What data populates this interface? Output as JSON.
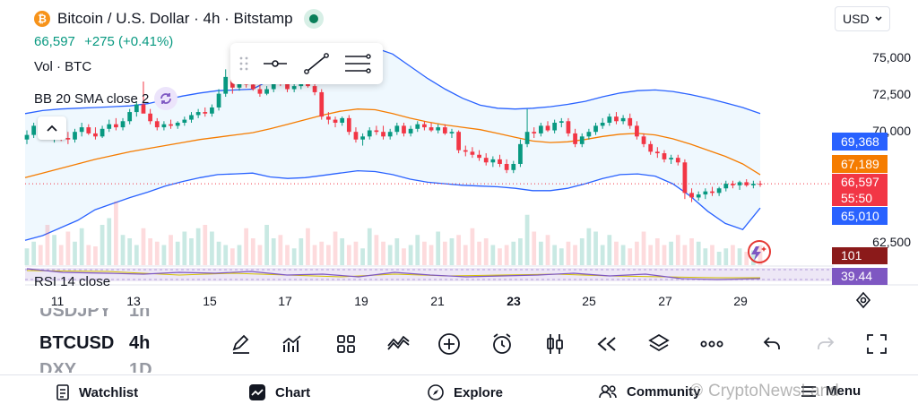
{
  "header": {
    "symbol_title": "Bitcoin / U.S. Dollar · 4h · Bitstamp",
    "logo_letter": "₿",
    "last_price": "66,597",
    "change": "+275 (+0.41%)",
    "volume_label": "Vol · BTC",
    "bb_label": "BB 20 SMA close 2",
    "rsi_label": "RSI 14 close"
  },
  "currency_select": {
    "value": "USD"
  },
  "price_axis": {
    "ticks": [
      "75,000",
      "72,500",
      "70,000",
      "62,500"
    ]
  },
  "price_tags": {
    "bb_upper": {
      "text": "69,368",
      "color": "#2962ff"
    },
    "bb_basis": {
      "text": "67,189",
      "color": "#f57c00"
    },
    "last": {
      "text": "66,597",
      "countdown": "55:50",
      "color": "#f23645"
    },
    "bb_lower": {
      "text": "65,010",
      "color": "#2962ff"
    },
    "volume": {
      "text": "101",
      "color": "#8b1a1a"
    },
    "rsi": {
      "text": "39.44",
      "color": "#7e57c2"
    }
  },
  "time_axis": [
    "11",
    "13",
    "15",
    "17",
    "19",
    "21",
    "23",
    "25",
    "27",
    "29"
  ],
  "symbols_list": [
    {
      "symbol": "USDJPY",
      "tf": "1h"
    },
    {
      "symbol": "BTCUSD",
      "tf": "4h"
    },
    {
      "symbol": "DXY",
      "tf": "1D"
    }
  ],
  "toolbar_icons": [
    "pencil-icon",
    "indicators-icon",
    "layouts-icon",
    "compare-icon",
    "add-icon",
    "alert-icon",
    "chart-type-icon",
    "replay-icon",
    "layers-icon",
    "more-icon",
    "undo-icon",
    "redo-icon",
    "fullscreen-icon"
  ],
  "nav": {
    "watchlist": "Watchlist",
    "chart": "Chart",
    "explore": "Explore",
    "community": "Community",
    "menu": "Menu"
  },
  "watermark": "CryptoNewsLand",
  "chart_data": {
    "type": "candlestick",
    "title": "Bitcoin / U.S. Dollar · 4h · Bitstamp",
    "y_axis_range": [
      61500,
      76000
    ],
    "x_labels": [
      "11",
      "13",
      "15",
      "17",
      "19",
      "21",
      "23",
      "25",
      "27",
      "29"
    ],
    "candles_ohlc": [
      [
        69500,
        70100,
        69200,
        69800
      ],
      [
        69800,
        70600,
        69600,
        70400
      ],
      [
        70400,
        70900,
        69900,
        70200
      ],
      [
        70200,
        70500,
        69500,
        69700
      ],
      [
        69700,
        70100,
        69300,
        69900
      ],
      [
        69900,
        70400,
        69400,
        69600
      ],
      [
        69600,
        70000,
        69200,
        69500
      ],
      [
        69500,
        70200,
        69300,
        70000
      ],
      [
        70000,
        70600,
        69700,
        70300
      ],
      [
        70300,
        70500,
        69800,
        69900
      ],
      [
        69900,
        70300,
        69500,
        69700
      ],
      [
        69700,
        70400,
        69600,
        70200
      ],
      [
        70200,
        70800,
        70000,
        70500
      ],
      [
        70500,
        70900,
        70100,
        70300
      ],
      [
        70300,
        70900,
        70100,
        70700
      ],
      [
        70700,
        71500,
        70500,
        71300
      ],
      [
        71300,
        72000,
        71000,
        71800
      ],
      [
        71800,
        73300,
        71300,
        71200
      ],
      [
        71200,
        71500,
        70500,
        70700
      ],
      [
        70700,
        70900,
        70100,
        70300
      ],
      [
        70300,
        70700,
        70100,
        70500
      ],
      [
        70500,
        70800,
        70200,
        70400
      ],
      [
        70400,
        70700,
        70200,
        70600
      ],
      [
        70600,
        71000,
        70400,
        70800
      ],
      [
        70800,
        71300,
        70600,
        71100
      ],
      [
        71100,
        71500,
        70900,
        71300
      ],
      [
        71300,
        71600,
        71000,
        71200
      ],
      [
        71200,
        71800,
        71000,
        71600
      ],
      [
        71600,
        72800,
        71400,
        72500
      ],
      [
        72500,
        74100,
        72300,
        73600
      ],
      [
        73600,
        73900,
        72500,
        72900
      ],
      [
        72900,
        73500,
        72700,
        73300
      ],
      [
        73300,
        73600,
        72900,
        73100
      ],
      [
        73100,
        73400,
        72700,
        72800
      ],
      [
        72800,
        73100,
        72300,
        72500
      ],
      [
        72500,
        73000,
        72400,
        72800
      ],
      [
        72800,
        73600,
        72600,
        73400
      ],
      [
        73400,
        73700,
        73000,
        73300
      ],
      [
        73300,
        73500,
        72600,
        72800
      ],
      [
        72800,
        73200,
        72600,
        73000
      ],
      [
        73000,
        73400,
        72800,
        73200
      ],
      [
        73200,
        73500,
        72900,
        73000
      ],
      [
        73000,
        73200,
        72400,
        72600
      ],
      [
        72600,
        72800,
        70800,
        71000
      ],
      [
        71000,
        71300,
        70500,
        70800
      ],
      [
        70800,
        71000,
        70300,
        70600
      ],
      [
        70600,
        71000,
        70400,
        70900
      ],
      [
        70900,
        71100,
        69800,
        70000
      ],
      [
        70000,
        70300,
        69300,
        69500
      ],
      [
        69500,
        69900,
        69100,
        69700
      ],
      [
        69700,
        70300,
        69500,
        70100
      ],
      [
        70100,
        70400,
        69800,
        70000
      ],
      [
        70000,
        70400,
        69500,
        69700
      ],
      [
        69700,
        70200,
        69500,
        70000
      ],
      [
        70000,
        70600,
        69800,
        70400
      ],
      [
        70400,
        70600,
        69700,
        69900
      ],
      [
        69900,
        70400,
        69700,
        70200
      ],
      [
        70200,
        70700,
        70000,
        70500
      ],
      [
        70500,
        70700,
        70100,
        70300
      ],
      [
        70300,
        70600,
        70000,
        70100
      ],
      [
        70100,
        70500,
        69900,
        70300
      ],
      [
        70300,
        70500,
        69800,
        69900
      ],
      [
        69900,
        70200,
        69600,
        70000
      ],
      [
        70000,
        70100,
        68600,
        68800
      ],
      [
        68800,
        69100,
        68400,
        68700
      ],
      [
        68700,
        69000,
        68300,
        68500
      ],
      [
        68500,
        68800,
        68100,
        68300
      ],
      [
        68300,
        68600,
        67800,
        68000
      ],
      [
        68000,
        68400,
        67700,
        68200
      ],
      [
        68200,
        68500,
        67700,
        67900
      ],
      [
        67900,
        68200,
        67300,
        67500
      ],
      [
        67500,
        68100,
        67300,
        67900
      ],
      [
        67900,
        69500,
        67700,
        69200
      ],
      [
        69200,
        71500,
        69000,
        70000
      ],
      [
        70000,
        70300,
        69600,
        69900
      ],
      [
        69900,
        70600,
        69700,
        70400
      ],
      [
        70400,
        70700,
        70000,
        70100
      ],
      [
        70100,
        70800,
        69900,
        70600
      ],
      [
        70600,
        70900,
        70300,
        70700
      ],
      [
        70700,
        70900,
        69700,
        69900
      ],
      [
        69900,
        70200,
        69000,
        69200
      ],
      [
        69200,
        69900,
        69000,
        69700
      ],
      [
        69700,
        70200,
        69500,
        70000
      ],
      [
        70000,
        70600,
        69800,
        70400
      ],
      [
        70400,
        70900,
        70200,
        70600
      ],
      [
        70600,
        71200,
        70400,
        71000
      ],
      [
        71000,
        71300,
        70500,
        70700
      ],
      [
        70700,
        71100,
        70500,
        70900
      ],
      [
        70900,
        71200,
        70200,
        70400
      ],
      [
        70400,
        70700,
        69500,
        69700
      ],
      [
        69700,
        69900,
        69000,
        69200
      ],
      [
        69200,
        69400,
        68500,
        68700
      ],
      [
        68700,
        69000,
        68300,
        68600
      ],
      [
        68600,
        68800,
        68000,
        68200
      ],
      [
        68200,
        68500,
        67900,
        68300
      ],
      [
        68300,
        68500,
        67800,
        68000
      ],
      [
        68000,
        68200,
        65600,
        66000
      ],
      [
        66000,
        66300,
        65400,
        65700
      ],
      [
        65700,
        66100,
        65500,
        65900
      ],
      [
        65900,
        66300,
        65600,
        66100
      ],
      [
        66100,
        66400,
        65800,
        66000
      ],
      [
        66000,
        66400,
        65800,
        66300
      ],
      [
        66300,
        66800,
        66100,
        66600
      ],
      [
        66600,
        66800,
        66300,
        66500
      ],
      [
        66500,
        66800,
        66200,
        66700
      ],
      [
        66700,
        66900,
        66400,
        66500
      ],
      [
        66500,
        66800,
        66300,
        66600
      ],
      [
        66600,
        66800,
        66400,
        66597
      ]
    ],
    "bb_upper": [
      71200,
      71400,
      71500,
      71550,
      71600,
      71650,
      71700,
      71850,
      72100,
      72350,
      72550,
      72700,
      72750,
      72800,
      73400,
      74100,
      74600,
      75050,
      75400,
      75550,
      75500,
      75100,
      74300,
      73500,
      72800,
      72200,
      71750,
      71550,
      71500,
      71550,
      71650,
      71800,
      72000,
      72300,
      72550,
      72700,
      72750,
      72650,
      72450,
      72200,
      71900,
      71600,
      71200
    ],
    "bb_basis": [
      67000,
      67300,
      67600,
      67900,
      68200,
      68450,
      68700,
      68900,
      69100,
      69300,
      69500,
      69650,
      69800,
      69950,
      70200,
      70500,
      70800,
      71100,
      71350,
      71500,
      71450,
      71200,
      70900,
      70650,
      70450,
      70300,
      70150,
      69900,
      69650,
      69400,
      69300,
      69350,
      69500,
      69700,
      69850,
      69900,
      69800,
      69550,
      69200,
      68800,
      68400,
      67900,
      67189
    ],
    "bb_lower": [
      62900,
      63200,
      63700,
      64200,
      64900,
      65300,
      65700,
      66050,
      66450,
      66750,
      67000,
      67200,
      67250,
      67300,
      67050,
      66950,
      67000,
      67150,
      67300,
      67450,
      67400,
      67200,
      66900,
      66700,
      66600,
      66500,
      66450,
      66400,
      66300,
      66150,
      66150,
      66300,
      66600,
      66950,
      67200,
      67250,
      67100,
      66600,
      65800,
      64800,
      64000,
      63600,
      65010
    ],
    "volume_relative": [
      0.25,
      0.35,
      0.3,
      0.6,
      0.45,
      0.3,
      0.5,
      0.35,
      0.55,
      0.3,
      0.28,
      0.6,
      0.7,
      0.95,
      0.45,
      0.4,
      0.3,
      0.55,
      0.4,
      0.35,
      0.3,
      0.45,
      0.35,
      0.5,
      0.4,
      0.55,
      0.6,
      0.5,
      0.35,
      0.3,
      0.25,
      0.3,
      0.55,
      0.4,
      0.3,
      0.6,
      0.4,
      0.45,
      0.3,
      0.25,
      0.4,
      0.55,
      0.3,
      0.35,
      0.3,
      0.5,
      0.4,
      0.3,
      0.35,
      0.25,
      0.55,
      0.45,
      0.35,
      0.3,
      0.4,
      0.25,
      0.3,
      0.45,
      0.35,
      0.3,
      0.5,
      0.35,
      0.4,
      0.45,
      0.3,
      0.55,
      0.35,
      0.4,
      0.3,
      0.25,
      0.3,
      0.35,
      0.4,
      0.75,
      0.5,
      0.35,
      0.45,
      0.3,
      0.25,
      0.35,
      0.3,
      0.4,
      0.55,
      0.5,
      0.3,
      0.45,
      0.35,
      0.3,
      0.25,
      0.35,
      0.5,
      0.3,
      0.4,
      0.3,
      0.35,
      0.45,
      0.3,
      0.4,
      0.35,
      0.25,
      0.3,
      0.2,
      0.25,
      0.3,
      0.25,
      0.2,
      0.22,
      0.3
    ],
    "last_price_line": 66597
  }
}
